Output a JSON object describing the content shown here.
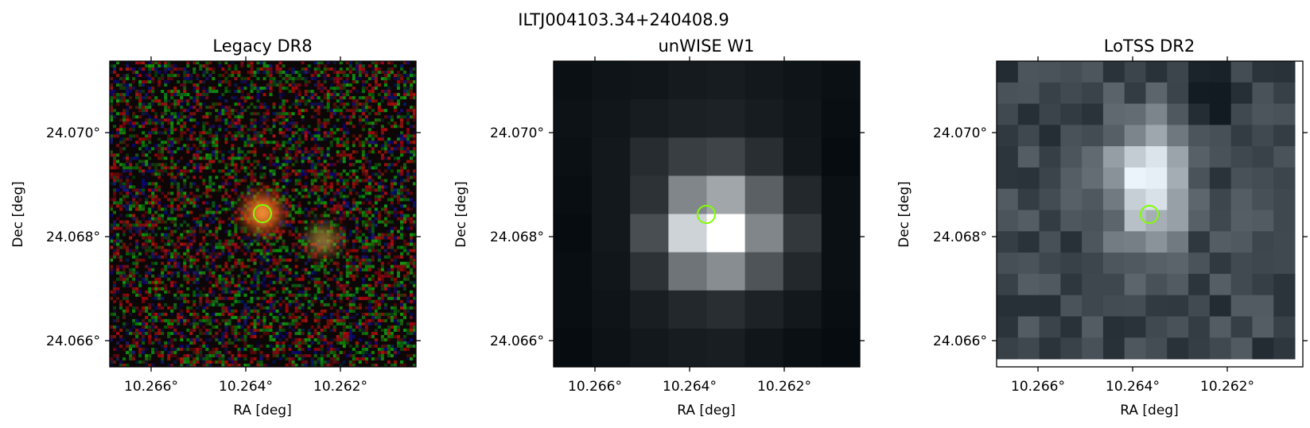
{
  "figure": {
    "title": "ILTJ004103.34+240408.9"
  },
  "panels": [
    {
      "title": "Legacy DR8",
      "xlabel": "RA [deg]",
      "ylabel": "Dec [deg]",
      "xticks": [
        "10.266°",
        "10.264°",
        "10.262°"
      ],
      "yticks": [
        "24.070°",
        "24.068°",
        "24.066°"
      ],
      "image": "optical RGB cutout",
      "marker": "green circle"
    },
    {
      "title": "unWISE W1",
      "xlabel": "RA [deg]",
      "ylabel": "Dec [deg]",
      "xticks": [
        "10.266°",
        "10.264°",
        "10.262°"
      ],
      "yticks": [
        "24.070°",
        "24.068°",
        "24.066°"
      ],
      "image": "infrared grayscale cutout",
      "marker": "green circle"
    },
    {
      "title": "LoTSS DR2",
      "xlabel": "RA [deg]",
      "ylabel": "Dec [deg]",
      "xticks": [
        "10.266°",
        "10.264°",
        "10.262°"
      ],
      "yticks": [
        "24.070°",
        "24.068°",
        "24.066°"
      ],
      "image": "radio grayscale cutout",
      "marker": "green circle"
    }
  ],
  "colors": {
    "marker": "#7fff00",
    "axis": "#000000"
  }
}
